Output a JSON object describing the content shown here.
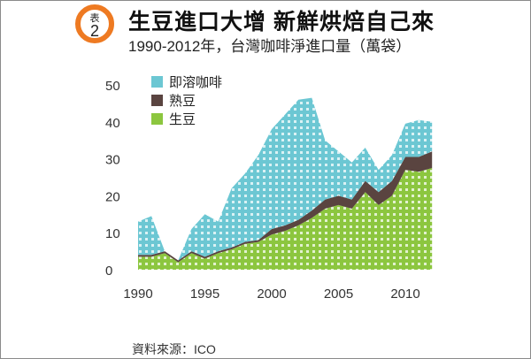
{
  "header": {
    "badge_top": "表",
    "badge_num": "2",
    "title": "生豆進口大增  新鮮烘焙自己來",
    "subtitle": "1990-2012年，台灣咖啡淨進口量（萬袋）"
  },
  "source": "資料來源：ICO",
  "colors": {
    "instant": "#6cc7d3",
    "roasted": "#5a4440",
    "green": "#8cc63f",
    "accent": "#ee7a22"
  },
  "chart_data": {
    "type": "area",
    "stacked": true,
    "title": "1990-2012年，台灣咖啡淨進口量（萬袋）",
    "xlabel": "",
    "ylabel": "萬袋",
    "x": [
      1990,
      1991,
      1992,
      1993,
      1994,
      1995,
      1996,
      1997,
      1998,
      1999,
      2000,
      2001,
      2002,
      2003,
      2004,
      2005,
      2006,
      2007,
      2008,
      2009,
      2010,
      2011,
      2012
    ],
    "xticks": [
      "1990",
      "1995",
      "2000",
      "2005",
      "2010"
    ],
    "yticks": [
      "0",
      "10",
      "20",
      "30",
      "40",
      "50"
    ],
    "ylim": [
      0,
      50
    ],
    "xlim": [
      1990,
      2012.5
    ],
    "legend_position": "top-left",
    "series": [
      {
        "name": "生豆",
        "key": "green",
        "values": [
          3.5,
          3.5,
          4.5,
          2,
          4.5,
          3,
          4.5,
          5.5,
          7,
          7.5,
          9.5,
          10.5,
          12,
          14,
          16.5,
          17.5,
          16.5,
          21,
          17.5,
          20,
          27,
          26.5,
          27.5
        ]
      },
      {
        "name": "熟豆",
        "key": "roasted",
        "values": [
          0.5,
          0.5,
          0.5,
          0.5,
          0.5,
          0.5,
          0.5,
          0.5,
          0.5,
          0.5,
          1.5,
          1.5,
          1.5,
          2,
          2.5,
          2.5,
          2.5,
          3,
          3.5,
          4,
          3.5,
          4,
          4.5
        ]
      },
      {
        "name": "即溶咖啡",
        "key": "instant",
        "values": [
          9,
          10.5,
          0,
          0,
          6,
          11.5,
          8,
          16,
          18.5,
          23,
          27,
          30,
          32.5,
          30.5,
          16,
          12,
          10,
          9,
          6,
          7,
          9,
          10,
          8
        ]
      }
    ]
  }
}
